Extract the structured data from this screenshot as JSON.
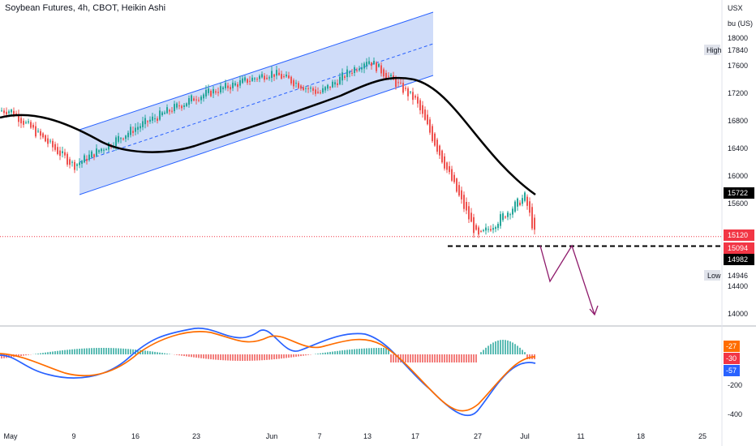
{
  "header": {
    "title": "Soybean Futures, 4h, CBOT, Heikin Ashi"
  },
  "price_axis": {
    "currency": "USX",
    "unit": "bu (US)"
  },
  "high_marker": {
    "label": "High",
    "value": "17840"
  },
  "low_marker": {
    "label": "Low",
    "value": "14946"
  },
  "badges": [
    {
      "value": "15722",
      "bg": "#000000"
    },
    {
      "value": "15120",
      "bg": "#f23645"
    },
    {
      "value": "15094",
      "bg": "#f23645"
    },
    {
      "value": "14982",
      "bg": "#000000"
    }
  ],
  "osc_badges": [
    {
      "value": "-27",
      "bg": "#ff6d00"
    },
    {
      "value": "-30",
      "bg": "#f23645"
    },
    {
      "value": "-57",
      "bg": "#2962ff"
    }
  ],
  "colors": {
    "up": "#26a69a",
    "down": "#ef5350",
    "ma": "#000000",
    "channel_fill": "#c7d6f8",
    "channel_line": "#2962ff",
    "macd": "#2962ff",
    "signal": "#ff6d00",
    "arrow": "#8e1a6b"
  },
  "chart_data": {
    "type": "candlestick",
    "price_ticks": [
      18000,
      17600,
      17200,
      16800,
      16400,
      16000,
      15600,
      14400,
      14000
    ],
    "oscillator_ticks": [
      "-200",
      "-400"
    ],
    "x_ticks": [
      "May",
      "9",
      "16",
      "23",
      "Jun",
      "7",
      "13",
      "17",
      "27",
      "Jul",
      "11",
      "18",
      "25"
    ],
    "price_path": [
      [
        "May",
        16950
      ],
      [
        "9",
        16150
      ],
      [
        "16",
        16700
      ],
      [
        "23",
        17150
      ],
      [
        "Jun",
        17500
      ],
      [
        "7",
        17200
      ],
      [
        "13",
        17700
      ],
      [
        "17",
        17100
      ],
      [
        "27",
        15100
      ],
      [
        "Jul",
        15700
      ]
    ],
    "last_price": 15120,
    "support_level": 14982,
    "moving_average_last": 15722,
    "macd_last": -57,
    "signal_last": -27,
    "histogram_last": -30
  }
}
